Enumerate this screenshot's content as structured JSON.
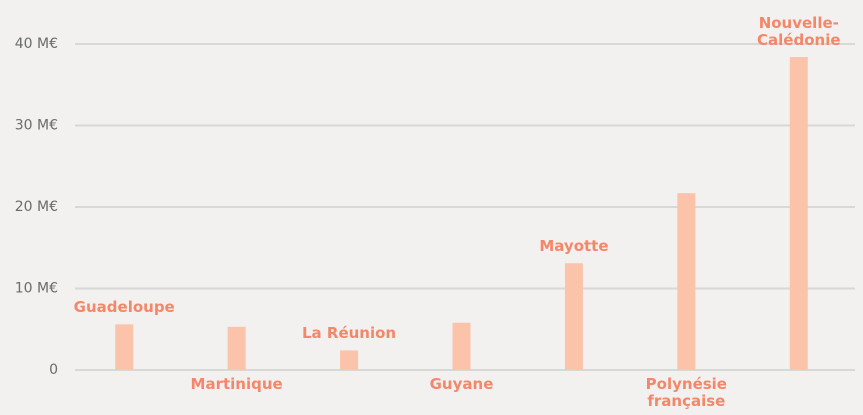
{
  "chart_data": {
    "type": "bar",
    "categories": [
      "Guadeloupe",
      "Martinique",
      "La Réunion",
      "Guyane",
      "Mayotte",
      "Polynésie française",
      "Nouvelle-Calédonie"
    ],
    "values": [
      5.6,
      5.3,
      2.4,
      5.8,
      13.1,
      21.7,
      38.4
    ],
    "color": "#fcc3ab",
    "label_color": "#f4876a",
    "ylim": [
      0,
      40
    ],
    "yticks": [
      0,
      {
        "value": 10,
        "label": "10 M€"
      },
      {
        "value": 20,
        "label": "20 M€"
      },
      {
        "value": 30,
        "label": "30 M€"
      },
      {
        "value": 40,
        "label": "40 M€"
      }
    ],
    "grid": true
  }
}
